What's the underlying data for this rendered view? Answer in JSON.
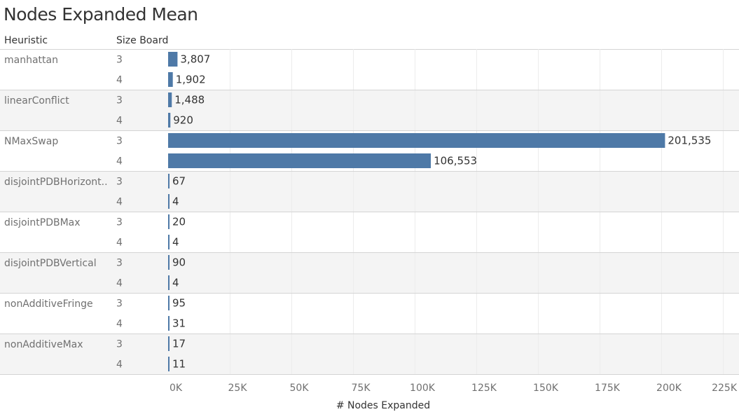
{
  "chart_data": {
    "type": "bar",
    "orientation": "horizontal",
    "title": "Nodes Expanded Mean",
    "row_headers": [
      "Heuristic",
      "Size Board"
    ],
    "xlabel": "# Nodes Expanded",
    "xlim": [
      0,
      225000
    ],
    "x_ticks": [
      "0K",
      "25K",
      "50K",
      "75K",
      "100K",
      "125K",
      "150K",
      "175K",
      "200K",
      "225K"
    ],
    "x_tick_values": [
      0,
      25000,
      50000,
      75000,
      100000,
      125000,
      150000,
      175000,
      200000,
      225000
    ],
    "grid": true,
    "bar_color": "#4e79a7",
    "groups": [
      {
        "heuristic": "manhattan",
        "rows": [
          {
            "size": "3",
            "value": 3807,
            "label": "3,807"
          },
          {
            "size": "4",
            "value": 1902,
            "label": "1,902"
          }
        ]
      },
      {
        "heuristic": "linearConflict",
        "rows": [
          {
            "size": "3",
            "value": 1488,
            "label": "1,488"
          },
          {
            "size": "4",
            "value": 920,
            "label": "920"
          }
        ]
      },
      {
        "heuristic": "NMaxSwap",
        "rows": [
          {
            "size": "3",
            "value": 201535,
            "label": "201,535"
          },
          {
            "size": "4",
            "value": 106553,
            "label": "106,553"
          }
        ]
      },
      {
        "heuristic": "disjointPDBHorizont..",
        "rows": [
          {
            "size": "3",
            "value": 67,
            "label": "67"
          },
          {
            "size": "4",
            "value": 4,
            "label": "4"
          }
        ]
      },
      {
        "heuristic": "disjointPDBMax",
        "rows": [
          {
            "size": "3",
            "value": 20,
            "label": "20"
          },
          {
            "size": "4",
            "value": 4,
            "label": "4"
          }
        ]
      },
      {
        "heuristic": "disjointPDBVertical",
        "rows": [
          {
            "size": "3",
            "value": 90,
            "label": "90"
          },
          {
            "size": "4",
            "value": 4,
            "label": "4"
          }
        ]
      },
      {
        "heuristic": "nonAdditiveFringe",
        "rows": [
          {
            "size": "3",
            "value": 95,
            "label": "95"
          },
          {
            "size": "4",
            "value": 31,
            "label": "31"
          }
        ]
      },
      {
        "heuristic": "nonAdditiveMax",
        "rows": [
          {
            "size": "3",
            "value": 17,
            "label": "17"
          },
          {
            "size": "4",
            "value": 11,
            "label": "11"
          }
        ]
      }
    ]
  }
}
